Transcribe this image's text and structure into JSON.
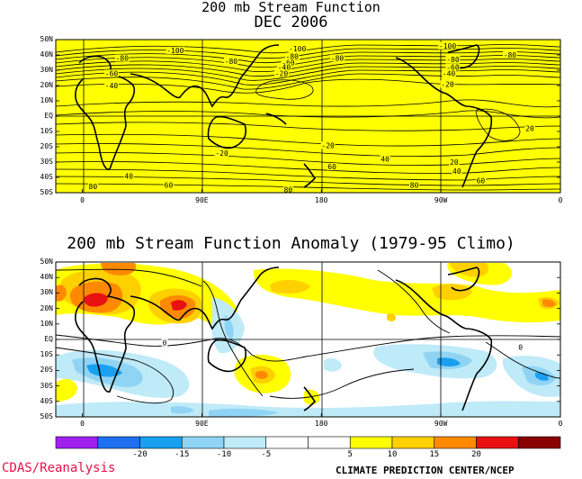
{
  "top_panel": {
    "title_line1": "200 mb Stream Function",
    "title_line2": "DEC 2006",
    "contour_labels": [
      {
        "text": "-100",
        "lon": 70,
        "lat": 43
      },
      {
        "text": "-80",
        "lon": 30,
        "lat": 38
      },
      {
        "text": "-60",
        "lon": 22,
        "lat": 28
      },
      {
        "text": "-40",
        "lon": 22,
        "lat": 20
      },
      {
        "text": "-80",
        "lon": 112,
        "lat": 36
      },
      {
        "text": "-100",
        "lon": 162,
        "lat": 44
      },
      {
        "text": "-80",
        "lon": 158,
        "lat": 39
      },
      {
        "text": "-60",
        "lon": 155,
        "lat": 35
      },
      {
        "text": "-40",
        "lon": 152,
        "lat": 32
      },
      {
        "text": "-20",
        "lon": 150,
        "lat": 28
      },
      {
        "text": "-80",
        "lon": 192,
        "lat": 38
      },
      {
        "text": "-100",
        "lon": 275,
        "lat": 46
      },
      {
        "text": "-80",
        "lon": 322,
        "lat": 40
      },
      {
        "text": "-80",
        "lon": 279,
        "lat": 37
      },
      {
        "text": "-60",
        "lon": 279,
        "lat": 32
      },
      {
        "text": "-40",
        "lon": 276,
        "lat": 28
      },
      {
        "text": "-20",
        "lon": 275,
        "lat": 21
      },
      {
        "text": "20",
        "lon": 337,
        "lat": -8
      },
      {
        "text": "-20",
        "lon": 105,
        "lat": -24
      },
      {
        "text": "-20",
        "lon": 185,
        "lat": -19
      },
      {
        "text": "40",
        "lon": 228,
        "lat": -28
      },
      {
        "text": "20",
        "lon": 280,
        "lat": -30
      },
      {
        "text": "40",
        "lon": 282,
        "lat": -36
      },
      {
        "text": "60",
        "lon": 188,
        "lat": -33
      },
      {
        "text": "40",
        "lon": 35,
        "lat": -39
      },
      {
        "text": "60",
        "lon": 65,
        "lat": -45
      },
      {
        "text": "80",
        "lon": 8,
        "lat": -46
      },
      {
        "text": "80",
        "lon": 155,
        "lat": -48
      },
      {
        "text": "80",
        "lon": 250,
        "lat": -45
      },
      {
        "text": "60",
        "lon": 300,
        "lat": -42
      }
    ]
  },
  "bottom_panel": {
    "title": "200 mb Stream Function Anomaly (1979-95 Climo)",
    "contour_labels": [
      {
        "text": "0",
        "lon": 62,
        "lat": -2
      },
      {
        "text": "0",
        "lon": 330,
        "lat": -5
      }
    ]
  },
  "axes": {
    "lat_ticks": [
      {
        "label": "50N",
        "lat": 50
      },
      {
        "label": "40N",
        "lat": 40
      },
      {
        "label": "30N",
        "lat": 30
      },
      {
        "label": "20N",
        "lat": 20
      },
      {
        "label": "10N",
        "lat": 10
      },
      {
        "label": "EQ",
        "lat": 0
      },
      {
        "label": "10S",
        "lat": -10
      },
      {
        "label": "20S",
        "lat": -20
      },
      {
        "label": "30S",
        "lat": -30
      },
      {
        "label": "40S",
        "lat": -40
      },
      {
        "label": "50S",
        "lat": -50
      }
    ],
    "lon_ticks": [
      {
        "label": "0",
        "lon": 0
      },
      {
        "label": "90E",
        "lon": 90
      },
      {
        "label": "180",
        "lon": 180
      },
      {
        "label": "90W",
        "lon": 270
      },
      {
        "label": "0",
        "lon": 360
      }
    ],
    "lat_range": [
      -50,
      50
    ],
    "lon_range": [
      -20,
      360
    ]
  },
  "colorbar": {
    "labels": [
      "-20",
      "-15",
      "-10",
      "-5",
      "5",
      "10",
      "15",
      "20"
    ],
    "colors": [
      "#a020f0",
      "#1e6ff0",
      "#1aa0f0",
      "#8fd4f5",
      "#bfeaf8",
      "#ffffff",
      "#ffffff",
      "#ffff00",
      "#ffd000",
      "#ff8a00",
      "#e81010",
      "#8b0000"
    ]
  },
  "colors": {
    "top_fill": "#ffff00",
    "positive_fills": [
      "#ffff00",
      "#ffd000",
      "#ff8a00",
      "#e81010"
    ],
    "negative_fills": [
      "#bfeaf8",
      "#8fd4f5",
      "#1aa0f0"
    ]
  },
  "credits": {
    "left": "CDAS/Reanalysis",
    "right": "CLIMATE PREDICTION CENTER/NCEP"
  }
}
